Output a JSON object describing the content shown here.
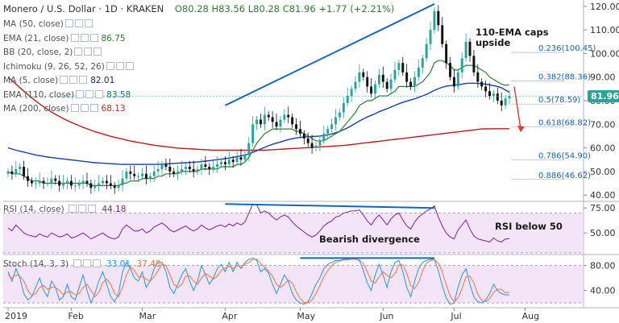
{
  "header": {
    "symbol": "Monero / U.S. Dollar",
    "interval": "1D",
    "exchange": "KRAKEN",
    "ohlc": "O80.28  H83.56  L80.28  C81.96  +1.77 (+2.21%)"
  },
  "legend": [
    {
      "label": "MA (50, close)",
      "value": "",
      "color": "#9c27b0"
    },
    {
      "label": "EMA (21, close)",
      "value": "86.75",
      "color": "#2e7d32"
    },
    {
      "label": "BB (20, close, 2)",
      "value": "",
      "color": "#1565c0"
    },
    {
      "label": "Ichimoku (9, 26, 52, 26)",
      "value": "",
      "color": "#1565c0"
    },
    {
      "label": "MA (5, close)",
      "value": "82.01",
      "color": "#1a237e"
    },
    {
      "label": "EMA (110, close)",
      "value": "83.58",
      "color": "#1565c0"
    },
    {
      "label": "MA (200, close)",
      "value": "68.13",
      "color": "#c62828"
    }
  ],
  "annotations": {
    "ema_caps": "110-EMA caps\nupside",
    "bearish_div": "Bearish divergence",
    "rsi_below": "RSI below 50"
  },
  "last_price": "81.96",
  "rsi_legend": {
    "label": "RSI (14, close)",
    "value": "44.18"
  },
  "stoch_legend": {
    "label": "Stoch (14, 3, 3)",
    "k": "33.01",
    "d": "37.40"
  },
  "colors": {
    "up": "#26a69a",
    "down": "#111111",
    "ema21": "#2e7d32",
    "ema110": "#1a3fa0",
    "ma200": "#b71c1c",
    "trend": "#1565c0",
    "fib": "#1565c0",
    "rsi": "#7b1fa2",
    "stochK": "#2196f3",
    "stochD": "#ff7043",
    "band": "#efd9f5"
  },
  "chart_data": [
    {
      "type": "line",
      "title": "Monero / U.S. Dollar 1D KRAKEN",
      "x_ticks": [
        "2019",
        "Feb",
        "Mar",
        "Apr",
        "May",
        "Jun",
        "Jul",
        "Aug"
      ],
      "y_ticks": [
        40,
        50,
        60,
        70,
        80,
        90,
        100,
        110,
        120
      ],
      "ylim": [
        38,
        122
      ],
      "fib_levels": [
        {
          "label": "0.236(100.45)",
          "value": 100.45
        },
        {
          "label": "0.382(88.36)",
          "value": 88.36
        },
        {
          "label": "0.5(78.59)",
          "value": 78.59
        },
        {
          "label": "0.618(68.82)",
          "value": 68.82
        },
        {
          "label": "0.786(54.90)",
          "value": 54.9
        },
        {
          "label": "0.886(46.62)",
          "value": 46.62
        }
      ],
      "price_closes": [
        50,
        49,
        51,
        52,
        48,
        46,
        45,
        45,
        46,
        45,
        45,
        47,
        46,
        44,
        45,
        46,
        44,
        44,
        45,
        46,
        45,
        43,
        44,
        45,
        46,
        45,
        44,
        43,
        44,
        47,
        50,
        49,
        48,
        48,
        49,
        47,
        48,
        50,
        51,
        53,
        52,
        50,
        49,
        50,
        51,
        52,
        51,
        50,
        51,
        53,
        52,
        51,
        52,
        53,
        54,
        53,
        55,
        54,
        56,
        55,
        57,
        62,
        70,
        72,
        70,
        74,
        73,
        71,
        69,
        72,
        74,
        73,
        70,
        68,
        66,
        64,
        62,
        60,
        61,
        63,
        66,
        68,
        70,
        73,
        75,
        79,
        82,
        85,
        88,
        92,
        90,
        86,
        83,
        87,
        91,
        88,
        85,
        89,
        93,
        96,
        92,
        88,
        86,
        90,
        94,
        98,
        104,
        110,
        118,
        112,
        104,
        96,
        90,
        86,
        92,
        98,
        105,
        99,
        92,
        88,
        86,
        84,
        82,
        83,
        80,
        78,
        81,
        82
      ],
      "ema21": [
        50,
        49,
        49,
        49,
        48,
        47,
        46,
        46,
        46,
        45,
        45,
        45,
        45,
        45,
        45,
        45,
        45,
        45,
        45,
        45,
        45,
        44,
        44,
        44,
        44,
        44,
        44,
        44,
        44,
        45,
        45,
        46,
        46,
        46,
        47,
        47,
        47,
        47,
        48,
        48,
        49,
        49,
        49,
        49,
        50,
        50,
        50,
        50,
        50,
        51,
        51,
        51,
        51,
        51,
        52,
        52,
        52,
        52,
        53,
        53,
        54,
        56,
        59,
        62,
        64,
        66,
        67,
        68,
        68,
        68,
        68,
        68,
        68,
        67,
        67,
        66,
        65,
        64,
        63,
        63,
        63,
        64,
        65,
        66,
        67,
        69,
        71,
        73,
        75,
        78,
        79,
        80,
        80,
        81,
        82,
        82,
        82,
        83,
        84,
        86,
        86,
        86,
        86,
        86,
        87,
        88,
        90,
        92,
        96,
        97,
        97,
        96,
        95,
        93,
        93,
        94,
        95,
        95,
        95,
        94,
        93,
        92,
        90,
        89,
        88,
        87,
        86.5,
        86.75
      ],
      "ema110": [
        60,
        59.5,
        59,
        58.6,
        58.2,
        57.8,
        57.4,
        57,
        56.7,
        56.4,
        56.1,
        55.9,
        55.7,
        55.5,
        55.3,
        55.1,
        54.9,
        54.7,
        54.5,
        54.3,
        54.1,
        53.9,
        53.7,
        53.6,
        53.5,
        53.4,
        53.3,
        53.2,
        53.1,
        53,
        53,
        53,
        53,
        53,
        53,
        53,
        53,
        53,
        53,
        53.1,
        53.2,
        53.3,
        53.4,
        53.5,
        53.6,
        53.7,
        53.8,
        53.9,
        54,
        54.2,
        54.4,
        54.6,
        54.8,
        55,
        55.2,
        55.4,
        55.7,
        56,
        56.3,
        56.6,
        57,
        57.5,
        58.1,
        58.8,
        59.5,
        60.2,
        60.9,
        61.5,
        62,
        62.5,
        63,
        63.5,
        63.9,
        64.2,
        64.4,
        64.6,
        64.7,
        64.8,
        64.9,
        65,
        65.2,
        65.5,
        65.9,
        66.4,
        67,
        67.7,
        68.5,
        69.4,
        70.4,
        71.4,
        72.3,
        73.1,
        73.8,
        74.5,
        75.3,
        76,
        76.6,
        77.3,
        78,
        78.7,
        79.3,
        79.8,
        80.3,
        80.8,
        81.4,
        82,
        82.7,
        83.5,
        84.4,
        85.1,
        85.7,
        86.1,
        86.4,
        86.6,
        86.8,
        87,
        87.3,
        87.4,
        87.4,
        87.3,
        87.2,
        87,
        86.7,
        86.4,
        86,
        85.5,
        84.5,
        83.58
      ],
      "ma200": [
        90,
        88.5,
        87,
        85.5,
        84,
        82.6,
        81.2,
        79.9,
        78.6,
        77.4,
        76.3,
        75.2,
        74.2,
        73.3,
        72.4,
        71.6,
        70.8,
        70.1,
        69.4,
        68.7,
        68.1,
        67.5,
        66.9,
        66.4,
        65.9,
        65.4,
        64.9,
        64.5,
        64.1,
        63.7,
        63.3,
        62.9,
        62.6,
        62.3,
        62,
        61.7,
        61.4,
        61.1,
        60.9,
        60.7,
        60.5,
        60.3,
        60.1,
        59.9,
        59.8,
        59.7,
        59.6,
        59.5,
        59.4,
        59.3,
        59.2,
        59.1,
        59,
        59,
        59,
        59,
        59,
        59,
        59,
        59,
        59,
        59,
        59,
        59,
        59,
        59,
        59.1,
        59.2,
        59.3,
        59.4,
        59.5,
        59.6,
        59.7,
        59.8,
        59.9,
        60,
        60.1,
        60.2,
        60.3,
        60.4,
        60.5,
        60.6,
        60.7,
        60.8,
        60.9,
        61,
        61.2,
        61.4,
        61.6,
        61.8,
        62,
        62.2,
        62.4,
        62.6,
        62.8,
        63,
        63.2,
        63.4,
        63.6,
        63.8,
        64,
        64.2,
        64.4,
        64.6,
        64.8,
        65,
        65.2,
        65.4,
        65.6,
        65.8,
        66,
        66.2,
        66.4,
        66.6,
        66.8,
        67,
        67.2,
        67.4,
        67.6,
        67.8,
        68,
        68.05,
        68.1,
        68.13,
        68.13,
        68.13,
        68.13,
        68.13
      ]
    },
    {
      "type": "line",
      "title": "RSI (14, close)",
      "y_ticks": [
        50,
        75
      ],
      "ylim": [
        30,
        80
      ],
      "values": [
        55,
        52,
        58,
        54,
        50,
        48,
        47,
        46,
        49,
        47,
        46,
        50,
        48,
        46,
        47,
        49,
        45,
        46,
        48,
        50,
        47,
        44,
        46,
        48,
        50,
        47,
        45,
        44,
        46,
        54,
        58,
        55,
        52,
        52,
        54,
        50,
        52,
        56,
        58,
        60,
        57,
        53,
        51,
        53,
        55,
        57,
        54,
        52,
        54,
        58,
        55,
        53,
        55,
        57,
        58,
        56,
        59,
        57,
        60,
        58,
        61,
        70,
        79,
        78,
        70,
        72,
        70,
        66,
        63,
        66,
        68,
        66,
        61,
        57,
        54,
        51,
        48,
        46,
        48,
        52,
        57,
        60,
        62,
        66,
        67,
        70,
        71,
        72,
        72,
        73,
        68,
        62,
        58,
        64,
        68,
        63,
        58,
        64,
        68,
        70,
        63,
        57,
        54,
        61,
        66,
        69,
        72,
        74,
        77,
        66,
        57,
        50,
        46,
        44,
        53,
        58,
        63,
        54,
        47,
        44,
        43,
        42,
        41,
        45,
        42,
        41,
        44,
        44.18
      ]
    },
    {
      "type": "line",
      "title": "Stoch (14, 3, 3)",
      "y_ticks": [
        40,
        80
      ],
      "ylim": [
        15,
        95
      ],
      "k": [
        70,
        55,
        75,
        60,
        35,
        25,
        30,
        45,
        60,
        40,
        30,
        55,
        45,
        25,
        30,
        50,
        30,
        25,
        45,
        65,
        40,
        20,
        35,
        55,
        70,
        50,
        30,
        22,
        35,
        70,
        85,
        75,
        60,
        55,
        70,
        45,
        55,
        75,
        85,
        85,
        70,
        45,
        35,
        50,
        65,
        75,
        55,
        40,
        55,
        80,
        65,
        50,
        60,
        75,
        82,
        70,
        85,
        70,
        85,
        75,
        85,
        90,
        92,
        88,
        70,
        75,
        68,
        50,
        35,
        50,
        65,
        55,
        35,
        25,
        20,
        18,
        22,
        35,
        50,
        60,
        75,
        82,
        85,
        88,
        88,
        90,
        90,
        90,
        90,
        88,
        72,
        52,
        40,
        65,
        82,
        65,
        45,
        70,
        85,
        88,
        70,
        45,
        30,
        55,
        75,
        85,
        88,
        90,
        90,
        72,
        48,
        28,
        18,
        20,
        45,
        65,
        75,
        50,
        30,
        22,
        20,
        25,
        35,
        50,
        40,
        35,
        33,
        33.01
      ],
      "d": [
        65,
        60,
        65,
        63,
        55,
        40,
        32,
        35,
        45,
        48,
        42,
        45,
        45,
        40,
        33,
        38,
        38,
        33,
        35,
        45,
        50,
        40,
        30,
        37,
        53,
        58,
        50,
        35,
        30,
        45,
        65,
        78,
        72,
        62,
        62,
        58,
        55,
        62,
        72,
        82,
        80,
        65,
        50,
        45,
        50,
        63,
        63,
        55,
        50,
        60,
        67,
        63,
        58,
        63,
        72,
        76,
        79,
        75,
        80,
        77,
        82,
        85,
        90,
        90,
        83,
        77,
        71,
        63,
        50,
        45,
        50,
        57,
        52,
        38,
        27,
        21,
        20,
        25,
        35,
        48,
        62,
        72,
        80,
        85,
        87,
        89,
        89,
        90,
        90,
        89,
        83,
        70,
        55,
        52,
        62,
        70,
        64,
        60,
        67,
        81,
        81,
        67,
        48,
        43,
        53,
        72,
        83,
        88,
        89,
        84,
        70,
        49,
        31,
        22,
        28,
        43,
        62,
        63,
        52,
        34,
        24,
        22,
        27,
        37,
        42,
        42,
        36,
        37.4
      ]
    }
  ]
}
